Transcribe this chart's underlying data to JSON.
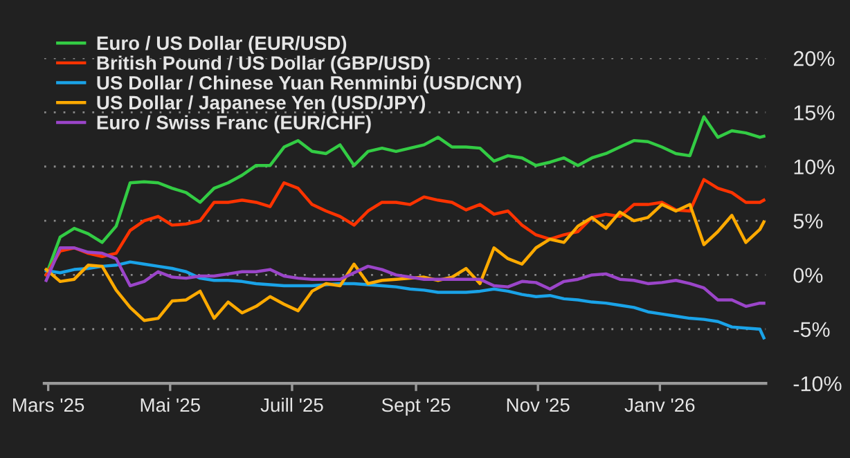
{
  "chart_data": {
    "type": "line",
    "x": [
      "2025-02-28",
      "2025-03-07",
      "2025-03-14",
      "2025-03-21",
      "2025-03-28",
      "2025-04-04",
      "2025-04-11",
      "2025-04-18",
      "2025-04-25",
      "2025-05-02",
      "2025-05-09",
      "2025-05-16",
      "2025-05-23",
      "2025-05-30",
      "2025-06-06",
      "2025-06-13",
      "2025-06-20",
      "2025-06-27",
      "2025-07-04",
      "2025-07-11",
      "2025-07-18",
      "2025-07-25",
      "2025-08-01",
      "2025-08-08",
      "2025-08-15",
      "2025-08-22",
      "2025-08-29",
      "2025-09-05",
      "2025-09-12",
      "2025-09-19",
      "2025-09-26",
      "2025-10-03",
      "2025-10-10",
      "2025-10-17",
      "2025-10-24",
      "2025-10-31",
      "2025-11-07",
      "2025-11-14",
      "2025-11-21",
      "2025-11-28",
      "2025-12-05",
      "2025-12-12",
      "2025-12-19",
      "2025-12-26",
      "2026-01-02",
      "2026-01-09",
      "2026-01-16",
      "2026-01-23",
      "2026-01-30",
      "2026-02-06",
      "2026-02-13",
      "2026-02-20",
      "2026-02-22"
    ],
    "series": [
      {
        "name": "Euro / US Dollar (EUR/USD)",
        "color": "#33cc44",
        "values": [
          0,
          3.5,
          4.3,
          3.8,
          3.0,
          4.5,
          8.5,
          8.6,
          8.5,
          8.0,
          7.6,
          6.7,
          8.0,
          8.5,
          9.2,
          10.1,
          10.1,
          11.8,
          12.4,
          11.4,
          11.2,
          12.0,
          10.1,
          11.4,
          11.7,
          11.4,
          11.7,
          12.0,
          12.7,
          11.8,
          11.8,
          11.7,
          10.5,
          11.0,
          10.8,
          10.1,
          10.4,
          10.8,
          10.1,
          10.8,
          11.2,
          11.8,
          12.4,
          12.3,
          11.8,
          11.2,
          11.0,
          14.6,
          12.7,
          13.3,
          13.1,
          12.7,
          12.8
        ]
      },
      {
        "name": "British Pound / US Dollar (GBP/USD)",
        "color": "#ff3300",
        "values": [
          0,
          2.2,
          2.5,
          2.0,
          1.7,
          2.0,
          4.1,
          5.0,
          5.4,
          4.6,
          4.7,
          5.0,
          6.7,
          6.7,
          6.9,
          6.7,
          6.3,
          8.5,
          8.0,
          6.5,
          5.9,
          5.4,
          4.6,
          5.9,
          6.7,
          6.7,
          6.5,
          7.2,
          6.9,
          6.7,
          6.0,
          6.5,
          5.6,
          5.9,
          4.6,
          3.7,
          3.3,
          3.7,
          4.0,
          5.3,
          5.6,
          5.4,
          6.5,
          6.5,
          6.7,
          6.0,
          5.9,
          8.8,
          8.0,
          7.6,
          6.7,
          6.7,
          6.9
        ]
      },
      {
        "name": "US Dollar / Chinese Yuan Renminbi (USD/CNY)",
        "color": "#1aa3e8",
        "values": [
          0.4,
          0.2,
          0.5,
          0.6,
          0.8,
          0.9,
          1.2,
          1.0,
          0.8,
          0.6,
          0.3,
          -0.3,
          -0.5,
          -0.5,
          -0.6,
          -0.8,
          -0.9,
          -1.0,
          -1.0,
          -1.0,
          -0.9,
          -0.8,
          -0.8,
          -0.9,
          -1.0,
          -1.1,
          -1.3,
          -1.4,
          -1.6,
          -1.6,
          -1.6,
          -1.5,
          -1.3,
          -1.5,
          -1.8,
          -2.0,
          -1.9,
          -2.2,
          -2.3,
          -2.5,
          -2.6,
          -2.8,
          -3.0,
          -3.4,
          -3.6,
          -3.8,
          -4.0,
          -4.1,
          -4.3,
          -4.8,
          -4.9,
          -5.0,
          -5.8
        ]
      },
      {
        "name": "US Dollar / Japanese Yen (USD/JPY)",
        "color": "#ffaa00",
        "values": [
          0.5,
          -0.6,
          -0.4,
          0.9,
          0.8,
          -1.4,
          -3.0,
          -4.2,
          -4.0,
          -2.4,
          -2.3,
          -1.5,
          -4.0,
          -2.5,
          -3.5,
          -2.9,
          -2.0,
          -2.7,
          -3.3,
          -1.5,
          -0.8,
          -1.0,
          1.0,
          -0.8,
          -0.5,
          -0.4,
          -0.3,
          -0.2,
          -0.5,
          -0.2,
          0.6,
          -0.8,
          2.5,
          1.5,
          1.0,
          2.5,
          3.3,
          3.0,
          4.5,
          5.3,
          4.3,
          5.8,
          5.0,
          5.3,
          6.5,
          5.9,
          6.5,
          2.8,
          4.0,
          5.5,
          3.0,
          4.2,
          4.9
        ]
      },
      {
        "name": "Euro / Swiss Franc (EUR/CHF)",
        "color": "#9b45c9",
        "values": [
          -0.5,
          2.5,
          2.5,
          2.1,
          2.0,
          1.5,
          -1.0,
          -0.6,
          0.3,
          -0.2,
          -0.3,
          -0.1,
          -0.1,
          0.1,
          0.3,
          0.3,
          0.5,
          -0.1,
          -0.3,
          -0.4,
          -0.4,
          -0.4,
          0.2,
          0.8,
          0.5,
          0.0,
          -0.2,
          -0.4,
          -0.4,
          -0.4,
          -0.4,
          -0.4,
          -1.0,
          -1.1,
          -0.6,
          -0.7,
          -1.3,
          -0.6,
          -0.4,
          0.0,
          0.1,
          -0.4,
          -0.5,
          -0.8,
          -0.7,
          -0.5,
          -0.8,
          -1.2,
          -2.3,
          -2.3,
          -2.9,
          -2.6,
          -2.6
        ]
      }
    ],
    "xlim": [
      "2025-02-27",
      "2026-02-23"
    ],
    "xticks": [
      {
        "value": "2025-03-01",
        "label": "Mars '25"
      },
      {
        "value": "2025-05-01",
        "label": "Mai '25"
      },
      {
        "value": "2025-07-01",
        "label": "Juill '25"
      },
      {
        "value": "2025-09-01",
        "label": "Sept '25"
      },
      {
        "value": "2025-11-01",
        "label": "Nov '25"
      },
      {
        "value": "2026-01-01",
        "label": "Janv '26"
      }
    ],
    "ylim": [
      -10,
      20
    ],
    "yticks": [
      {
        "value": -10,
        "label": "-10%"
      },
      {
        "value": -5,
        "label": "-5%"
      },
      {
        "value": 0,
        "label": "0%"
      },
      {
        "value": 5,
        "label": "5%"
      },
      {
        "value": 10,
        "label": "10%"
      },
      {
        "value": 15,
        "label": "15%"
      },
      {
        "value": 20,
        "label": "20%"
      }
    ],
    "grid": "y",
    "legend": "top left",
    "line_style": "solid"
  }
}
